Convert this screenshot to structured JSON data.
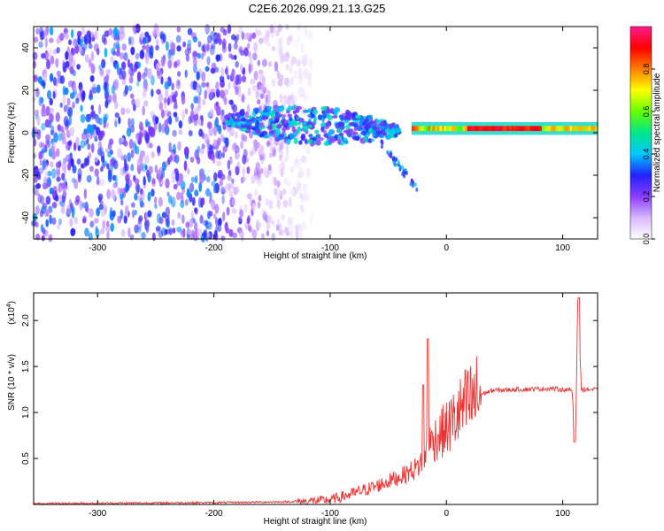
{
  "title": "C2E6.2026.099.21.13.G25",
  "chart_data": [
    {
      "type": "heatmap",
      "xlabel": "Height of straight line (km)",
      "ylabel": "Frequency (Hz)",
      "xlim": [
        -355,
        130
      ],
      "ylim": [
        -50,
        50
      ],
      "xticks": [
        -300,
        -200,
        -100,
        0,
        100
      ],
      "yticks": [
        -40,
        -20,
        0,
        20,
        40
      ],
      "colorbar": {
        "label": "Normalized spectral amplitude",
        "range": [
          0.0,
          1.0
        ],
        "ticks": [
          0.0,
          0.2,
          0.4,
          0.6,
          0.8
        ],
        "tick_labels": [
          "0.0",
          "0.2",
          "0.4",
          "0.6",
          "0.8"
        ],
        "colors": [
          "#ffffff",
          "#d9b8ff",
          "#8a3cff",
          "#2222ff",
          "#00c8ff",
          "#00e68a",
          "#66ff00",
          "#ffff00",
          "#ff8000",
          "#ff0000",
          "#ff1a8c"
        ]
      },
      "features": [
        {
          "name": "noise_field",
          "x_range": [
            -355,
            -140
          ],
          "freq_range": [
            -50,
            50
          ],
          "amplitude": 0.2
        },
        {
          "name": "scatter_band",
          "x_range": [
            -190,
            -40
          ],
          "freq_center": [
            6,
            1
          ],
          "amplitude": 0.35
        },
        {
          "name": "carrier",
          "x_range": [
            -30,
            130
          ],
          "freq_center": 2,
          "amplitude": 0.85
        }
      ]
    },
    {
      "type": "line",
      "xlabel": "Height of straight line (km)",
      "ylabel": "SNR (10 * v/v)",
      "exponent_label": "(x10",
      "exponent_power": "4",
      "exponent_close": ")",
      "xlim": [
        -355,
        130
      ],
      "ylim": [
        0,
        2.3
      ],
      "xticks": [
        -300,
        -200,
        -100,
        0,
        100
      ],
      "yticks": [
        0.5,
        1.0,
        1.5,
        2.0
      ],
      "ytick_labels": [
        "0.5",
        "1.0",
        "1.5",
        "2.0"
      ],
      "color": "#ee3333",
      "series_keypoints": {
        "x": [
          -355,
          -200,
          -130,
          -100,
          -80,
          -60,
          -40,
          -25,
          -18,
          -15,
          -10,
          0,
          15,
          30,
          40,
          60,
          90,
          108,
          111,
          113,
          116,
          130
        ],
        "y": [
          0.01,
          0.02,
          0.03,
          0.05,
          0.12,
          0.2,
          0.3,
          0.4,
          0.55,
          0.65,
          0.72,
          0.82,
          1.05,
          1.2,
          1.24,
          1.25,
          1.26,
          1.24,
          0.7,
          2.25,
          1.25,
          1.25
        ]
      },
      "spikes": [
        {
          "x": -16,
          "y": 1.8
        },
        {
          "x": -20,
          "y": 1.3
        },
        {
          "x": 110,
          "y": 0.68
        },
        {
          "x": 114,
          "y": 2.25
        }
      ]
    }
  ]
}
